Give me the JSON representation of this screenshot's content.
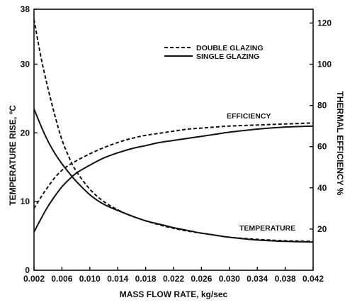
{
  "chart_data": {
    "type": "line",
    "title": "",
    "xlabel": "MASS FLOW RATE, kg/sec",
    "ylabel_left": "TEMPERATURE RISE, ºC",
    "ylabel_right": "THERMAL EFFICIENCY %",
    "xlim": [
      0.002,
      0.042
    ],
    "ylim_left": [
      0,
      38
    ],
    "ylim_right": [
      0,
      126.7
    ],
    "x_ticks": [
      "0.002",
      "0.006",
      "0.010",
      "0.014",
      "0.018",
      "0.022",
      "0.026",
      "0.030",
      "0.034",
      "0.038",
      "0.042"
    ],
    "y_left_ticks": [
      "0",
      "10",
      "20",
      "30",
      "38"
    ],
    "y_right_ticks": [
      "20",
      "40",
      "60",
      "80",
      "100",
      "120"
    ],
    "grid": false,
    "legend_position": "top-right (inside plot)",
    "legend": [
      {
        "label": "DOUBLE GLAZING",
        "style": "dashed"
      },
      {
        "label": "SINGLE GLAZING",
        "style": "solid"
      }
    ],
    "annotations": [
      "EFFICIENCY",
      "TEMPERATURE"
    ],
    "series": [
      {
        "name": "DOUBLE GLAZING",
        "style": "dashed",
        "axis": "left",
        "x": [
          0.002,
          0.003,
          0.004,
          0.005,
          0.006,
          0.007,
          0.008,
          0.01,
          0.012,
          0.014,
          0.016,
          0.018,
          0.02,
          0.022,
          0.024,
          0.026,
          0.028,
          0.03,
          0.034,
          0.038,
          0.042
        ],
        "values": [
          36.5,
          31.0,
          26.5,
          22.5,
          19.0,
          16.5,
          14.5,
          11.8,
          10.0,
          8.8,
          7.9,
          7.2,
          6.6,
          6.1,
          5.7,
          5.4,
          5.1,
          4.8,
          4.5,
          4.3,
          4.2
        ]
      },
      {
        "name": "SINGLE GLAZING",
        "style": "solid",
        "axis": "left",
        "x": [
          0.002,
          0.003,
          0.004,
          0.005,
          0.006,
          0.007,
          0.008,
          0.01,
          0.012,
          0.014,
          0.016,
          0.018,
          0.02,
          0.022,
          0.024,
          0.026,
          0.028,
          0.03,
          0.034,
          0.038,
          0.042
        ],
        "values": [
          23.5,
          21.0,
          18.8,
          17.0,
          15.5,
          14.2,
          13.0,
          11.0,
          9.6,
          8.7,
          7.9,
          7.2,
          6.7,
          6.2,
          5.8,
          5.4,
          5.1,
          4.8,
          4.4,
          4.2,
          4.1
        ]
      },
      {
        "name": "DOUBLE GLAZING",
        "style": "dashed",
        "axis": "right",
        "x": [
          0.002,
          0.003,
          0.004,
          0.005,
          0.006,
          0.007,
          0.008,
          0.01,
          0.012,
          0.014,
          0.016,
          0.018,
          0.02,
          0.022,
          0.024,
          0.026,
          0.028,
          0.03,
          0.034,
          0.038,
          0.042
        ],
        "values": [
          30.0,
          35.5,
          40.5,
          45.0,
          48.5,
          51.0,
          53.0,
          56.5,
          59.5,
          62.0,
          64.0,
          65.5,
          66.5,
          67.5,
          68.5,
          69.0,
          69.5,
          70.0,
          70.5,
          71.0,
          71.5
        ]
      },
      {
        "name": "SINGLE GLAZING",
        "style": "solid",
        "axis": "right",
        "x": [
          0.002,
          0.003,
          0.004,
          0.005,
          0.006,
          0.007,
          0.008,
          0.01,
          0.012,
          0.014,
          0.016,
          0.018,
          0.02,
          0.022,
          0.024,
          0.026,
          0.028,
          0.03,
          0.034,
          0.038,
          0.042
        ],
        "values": [
          18.5,
          25.0,
          31.0,
          36.0,
          40.5,
          44.0,
          47.0,
          51.0,
          54.5,
          57.0,
          59.0,
          60.5,
          62.0,
          63.0,
          64.0,
          65.0,
          66.0,
          67.0,
          68.5,
          69.5,
          70.0
        ]
      }
    ],
    "colors": {
      "line": "#111111",
      "background": "#ffffff"
    }
  }
}
